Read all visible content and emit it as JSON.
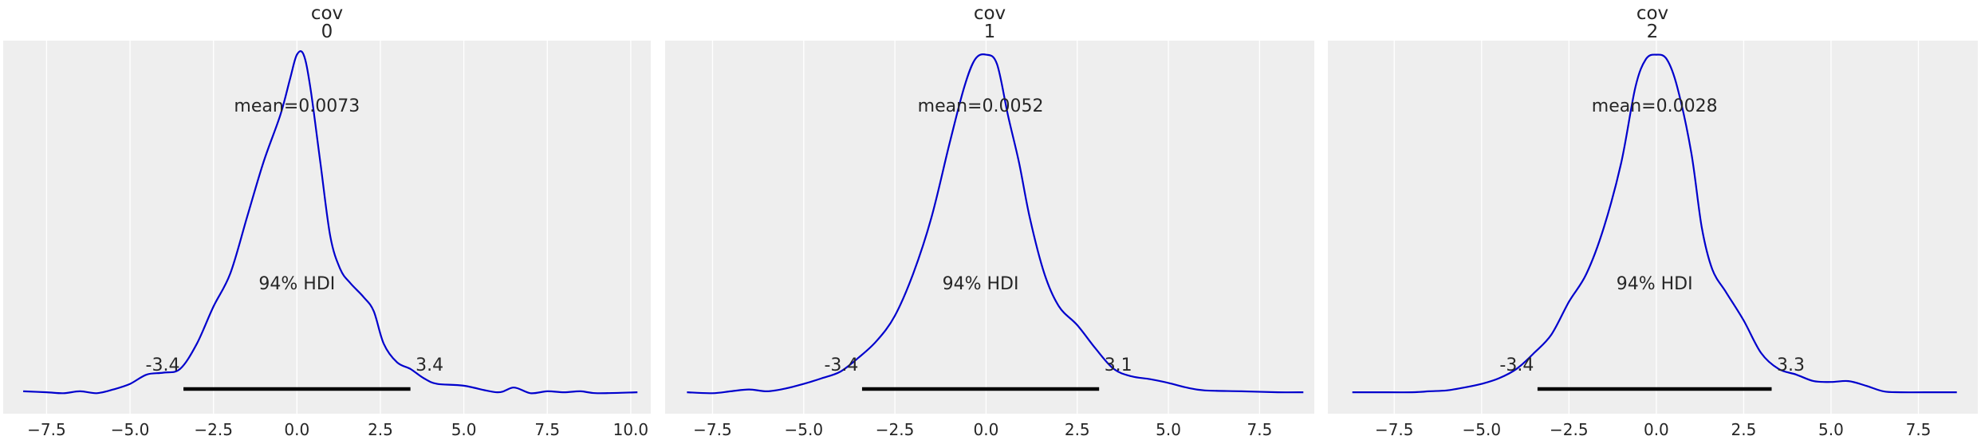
{
  "chart_data": [
    {
      "type": "line",
      "title": "cov",
      "subtitle": "0",
      "xlim": [
        -8.8,
        10.6
      ],
      "xticks": [
        -7.5,
        -5.0,
        -2.5,
        0.0,
        2.5,
        5.0,
        7.5,
        10.0
      ],
      "xtick_labels": [
        "−7.5",
        "−5.0",
        "−2.5",
        "0.0",
        "2.5",
        "5.0",
        "7.5",
        "10.0"
      ],
      "grid": true,
      "color": "#0000cc",
      "mean_label": "mean=0.0073",
      "hdi_label": "94% HDI",
      "hdi": [
        -3.4,
        3.4
      ],
      "hdi_labels": [
        "-3.4",
        "3.4"
      ],
      "density": {
        "x": [
          -8.2,
          -7.5,
          -7.0,
          -6.5,
          -6.0,
          -5.5,
          -5.0,
          -4.5,
          -4.0,
          -3.5,
          -3.0,
          -2.5,
          -2.0,
          -1.5,
          -1.0,
          -0.5,
          -0.2,
          0.0,
          0.2,
          0.4,
          0.7,
          1.0,
          1.3,
          1.6,
          2.0,
          2.3,
          2.6,
          3.0,
          3.4,
          3.8,
          4.2,
          5.0,
          6.0,
          6.5,
          7.0,
          7.5,
          8.0,
          8.5,
          9.0,
          10.2
        ],
        "y": [
          0.004,
          0.003,
          0.002,
          0.004,
          0.002,
          0.006,
          0.012,
          0.022,
          0.024,
          0.028,
          0.055,
          0.095,
          0.13,
          0.19,
          0.25,
          0.3,
          0.34,
          0.365,
          0.365,
          0.33,
          0.25,
          0.17,
          0.135,
          0.12,
          0.105,
          0.09,
          0.055,
          0.035,
          0.028,
          0.018,
          0.012,
          0.01,
          0.003,
          0.008,
          0.002,
          0.004,
          0.003,
          0.004,
          0.002,
          0.003
        ],
        "ylim": [
          -0.02,
          0.38
        ]
      }
    },
    {
      "type": "line",
      "title": "cov",
      "subtitle": "1",
      "xlim": [
        -8.8,
        9.0
      ],
      "xticks": [
        -7.5,
        -5.0,
        -2.5,
        0.0,
        2.5,
        5.0,
        7.5
      ],
      "xtick_labels": [
        "−7.5",
        "−5.0",
        "−2.5",
        "0.0",
        "2.5",
        "5.0",
        "7.5"
      ],
      "grid": true,
      "color": "#0000cc",
      "mean_label": "mean=0.0052",
      "hdi_label": "94% HDI",
      "hdi": [
        -3.4,
        3.1
      ],
      "hdi_labels": [
        "-3.4",
        "3.1"
      ],
      "density": {
        "x": [
          -8.2,
          -7.5,
          -7.0,
          -6.5,
          -6.0,
          -5.5,
          -5.0,
          -4.5,
          -4.0,
          -3.5,
          -3.0,
          -2.5,
          -2.0,
          -1.5,
          -1.0,
          -0.6,
          -0.3,
          0.0,
          0.3,
          0.6,
          0.9,
          1.2,
          1.6,
          2.0,
          2.5,
          3.0,
          3.5,
          4.0,
          4.5,
          5.0,
          5.5,
          6.0,
          7.0,
          8.0,
          8.7
        ],
        "y": [
          0.003,
          0.002,
          0.004,
          0.006,
          0.004,
          0.007,
          0.012,
          0.018,
          0.025,
          0.04,
          0.058,
          0.085,
          0.13,
          0.19,
          0.27,
          0.33,
          0.36,
          0.365,
          0.355,
          0.3,
          0.25,
          0.19,
          0.13,
          0.095,
          0.075,
          0.05,
          0.028,
          0.02,
          0.017,
          0.013,
          0.008,
          0.005,
          0.004,
          0.003,
          0.003
        ],
        "ylim": [
          -0.02,
          0.38
        ]
      }
    },
    {
      "type": "line",
      "title": "cov",
      "subtitle": "2",
      "xlim": [
        -9.4,
        9.2
      ],
      "xticks": [
        -7.5,
        -5.0,
        -2.5,
        0.0,
        2.5,
        5.0,
        7.5
      ],
      "xtick_labels": [
        "−7.5",
        "−5.0",
        "−2.5",
        "0.0",
        "2.5",
        "5.0",
        "7.5"
      ],
      "grid": true,
      "color": "#0000cc",
      "mean_label": "mean=0.0028",
      "hdi_label": "94% HDI",
      "hdi": [
        -3.4,
        3.3
      ],
      "hdi_labels": [
        "-3.4",
        "3.3"
      ],
      "density": {
        "x": [
          -8.7,
          -8.0,
          -7.0,
          -6.5,
          -6.0,
          -5.5,
          -5.0,
          -4.5,
          -4.0,
          -3.5,
          -3.0,
          -2.5,
          -2.0,
          -1.5,
          -1.0,
          -0.6,
          -0.3,
          0.0,
          0.3,
          0.6,
          1.0,
          1.3,
          1.6,
          2.0,
          2.5,
          3.0,
          3.5,
          4.0,
          4.5,
          5.0,
          5.5,
          6.0,
          6.5,
          7.0,
          8.0,
          8.6
        ],
        "y": [
          0.003,
          0.003,
          0.003,
          0.004,
          0.005,
          0.008,
          0.012,
          0.018,
          0.028,
          0.045,
          0.065,
          0.1,
          0.13,
          0.18,
          0.25,
          0.33,
          0.36,
          0.365,
          0.36,
          0.33,
          0.26,
          0.18,
          0.135,
          0.11,
          0.08,
          0.045,
          0.028,
          0.022,
          0.015,
          0.014,
          0.015,
          0.01,
          0.004,
          0.003,
          0.003,
          0.003
        ],
        "ylim": [
          -0.02,
          0.38
        ]
      }
    }
  ]
}
